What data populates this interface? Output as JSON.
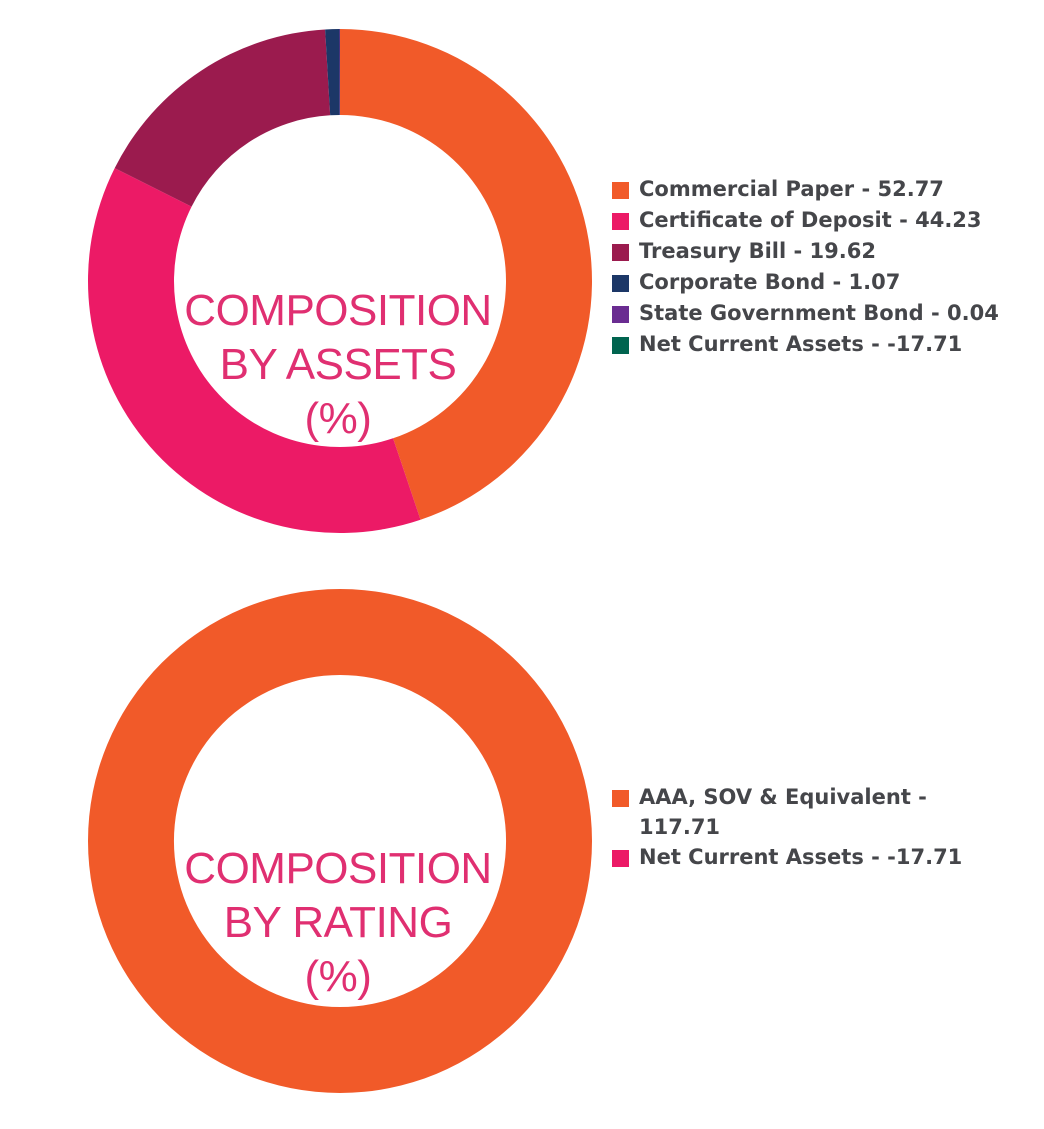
{
  "chart_data": [
    {
      "type": "pie",
      "title_lines": [
        "COMPOSITION",
        "BY ASSETS",
        "(%)"
      ],
      "legend_placement": "right",
      "slices": [
        {
          "label": "Commercial Paper - 52.77",
          "value": 52.77,
          "color": "#f15a29"
        },
        {
          "label": "Certificate of Deposit - 44.23",
          "value": 44.23,
          "color": "#ec1a66"
        },
        {
          "label": "Treasury Bill - 19.62",
          "value": 19.62,
          "color": "#9b1b4e"
        },
        {
          "label": "Corporate Bond - 1.07",
          "value": 1.07,
          "color": "#1c3767"
        },
        {
          "label": "State Government Bond - 0.04",
          "value": 0.04,
          "color": "#6a2c91"
        },
        {
          "label": "Net Current Assets - -17.71",
          "value": -17.71,
          "color": "#00644f"
        }
      ]
    },
    {
      "type": "pie",
      "title_lines": [
        "COMPOSITION",
        "BY RATING",
        "(%)"
      ],
      "legend_placement": "right",
      "slices": [
        {
          "label": "AAA, SOV & Equivalent - 117.71",
          "value": 117.71,
          "color": "#f15a29"
        },
        {
          "label": "Net Current Assets - -17.71",
          "value": -17.71,
          "color": "#ec1a66"
        }
      ]
    }
  ]
}
